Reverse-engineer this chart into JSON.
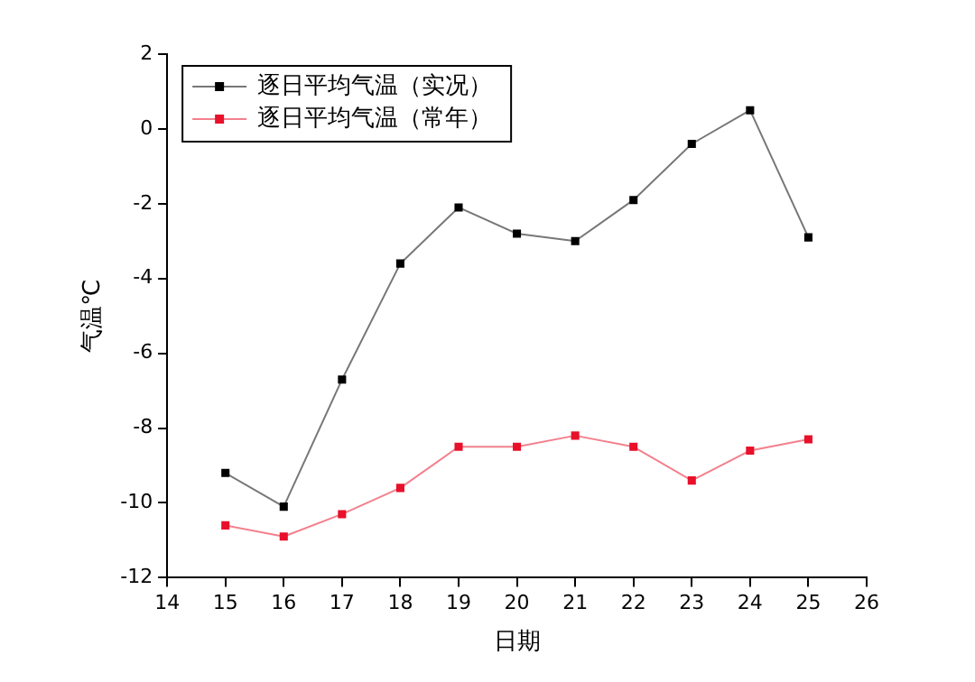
{
  "chart_data": {
    "type": "line",
    "xlabel": "日期",
    "ylabel": "气温℃",
    "x": [
      15,
      16,
      17,
      18,
      19,
      20,
      21,
      22,
      23,
      24,
      25
    ],
    "series": [
      {
        "name": "逐日平均气温（实况）",
        "color": "#000000",
        "values": [
          -9.2,
          -10.1,
          -6.7,
          -3.6,
          -2.1,
          -2.8,
          -3.0,
          -1.9,
          -0.4,
          0.5,
          -2.9
        ]
      },
      {
        "name": "逐日平均气温（常年）",
        "color": "#e8102a",
        "values": [
          -10.6,
          -10.9,
          -10.3,
          -9.6,
          -8.5,
          -8.5,
          -8.2,
          -8.5,
          -9.4,
          -8.6,
          -8.3
        ]
      }
    ],
    "xlim": [
      14,
      26
    ],
    "xticks": [
      14,
      15,
      16,
      17,
      18,
      19,
      20,
      21,
      22,
      23,
      24,
      25,
      26
    ],
    "ylim": [
      -12,
      2
    ],
    "yticks": [
      -12,
      -10,
      -8,
      -6,
      -4,
      -2,
      0,
      2
    ],
    "grid": false,
    "legend": "top left",
    "marker": "square",
    "line_style": "solid"
  }
}
